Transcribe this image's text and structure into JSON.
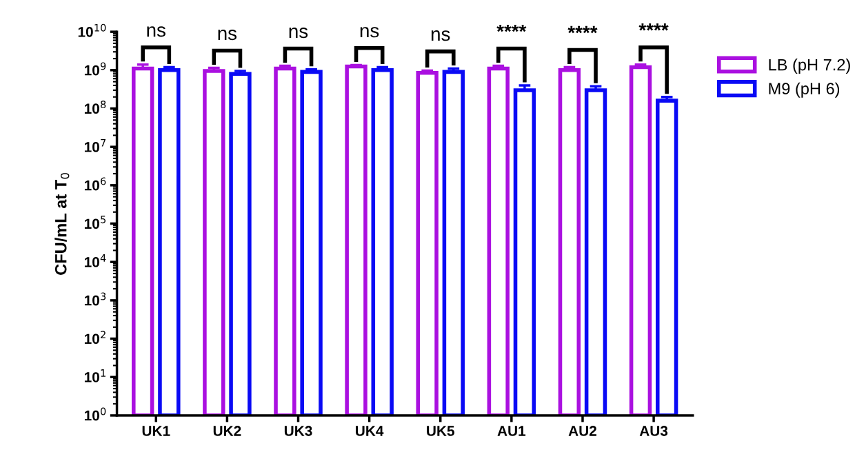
{
  "chart_data": {
    "type": "bar",
    "log": "y",
    "ylabel": "CFU/mL at T$_{0}$",
    "categories": [
      "UK1",
      "UK2",
      "UK3",
      "UK4",
      "UK5",
      "AU1",
      "AU2",
      "AU3"
    ],
    "series": [
      {
        "name": "LB (pH 7.2)",
        "color": "#aa10e0",
        "values": [
          1100000000.0,
          950000000.0,
          1100000000.0,
          1250000000.0,
          850000000.0,
          1100000000.0,
          1000000000.0,
          1200000000.0
        ],
        "errors": [
          [
            1100000000.0,
            1400000000.0
          ],
          [
            950000000.0,
            1150000000.0
          ],
          [
            1100000000.0,
            1300000000.0
          ],
          [
            1250000000.0,
            1350000000.0
          ],
          [
            850000000.0,
            970000000.0
          ],
          [
            1100000000.0,
            1300000000.0
          ],
          [
            1000000000.0,
            1200000000.0
          ],
          [
            1200000000.0,
            1400000000.0
          ]
        ]
      },
      {
        "name": "M9 (pH 6)",
        "color": "#0a0af5",
        "values": [
          1000000000.0,
          800000000.0,
          900000000.0,
          1000000000.0,
          900000000.0,
          300000000.0,
          300000000.0,
          160000000.0
        ],
        "errors": [
          [
            1000000000.0,
            1200000000.0
          ],
          [
            800000000.0,
            950000000.0
          ],
          [
            900000000.0,
            1050000000.0
          ],
          [
            1000000000.0,
            1200000000.0
          ],
          [
            900000000.0,
            1100000000.0
          ],
          [
            300000000.0,
            400000000.0
          ],
          [
            300000000.0,
            380000000.0
          ],
          [
            160000000.0,
            200000000.0
          ]
        ]
      }
    ],
    "ylim": [
      1,
      10000000000.0
    ],
    "yticks": [
      {
        "value": 1,
        "label": "10$^{0}$"
      },
      {
        "value": 10,
        "label": "10$^{1}$"
      },
      {
        "value": 100,
        "label": "10$^{2}$"
      },
      {
        "value": 1000,
        "label": "10$^{3}$"
      },
      {
        "value": 10000,
        "label": "10$^{4}$"
      },
      {
        "value": 100000,
        "label": "10$^{5}$"
      },
      {
        "value": 1000000,
        "label": "10$^{6}$"
      },
      {
        "value": 10000000,
        "label": "10$^{7}$"
      },
      {
        "value": 100000000,
        "label": "10$^{8}$"
      },
      {
        "value": 1000000000,
        "label": "10$^{9}$"
      },
      {
        "value": 10000000000,
        "label": "10$^{10}$"
      }
    ],
    "annotations": [
      "ns",
      "ns",
      "ns",
      "ns",
      "ns",
      "****",
      "****",
      "****"
    ],
    "legend": "right",
    "grid": false
  }
}
